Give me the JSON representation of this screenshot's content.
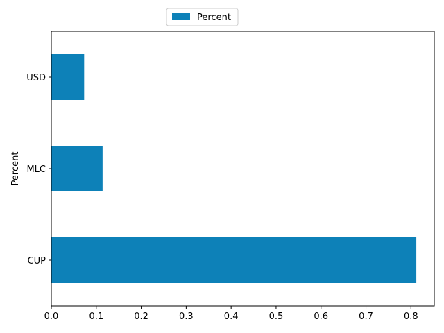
{
  "chart_data": {
    "type": "bar",
    "orientation": "horizontal",
    "categories": [
      "CUP",
      "MLC",
      "USD"
    ],
    "series": [
      {
        "name": "Percent",
        "values": [
          0.812,
          0.114,
          0.073
        ]
      }
    ],
    "xlabel": "",
    "ylabel": "Percent",
    "xlim": [
      0,
      0.852
    ],
    "xticks": [
      "0.0",
      "0.1",
      "0.2",
      "0.3",
      "0.4",
      "0.5",
      "0.6",
      "0.7",
      "0.8"
    ],
    "grid": false,
    "legend_position": "top-center",
    "color": "#0d81b8"
  }
}
